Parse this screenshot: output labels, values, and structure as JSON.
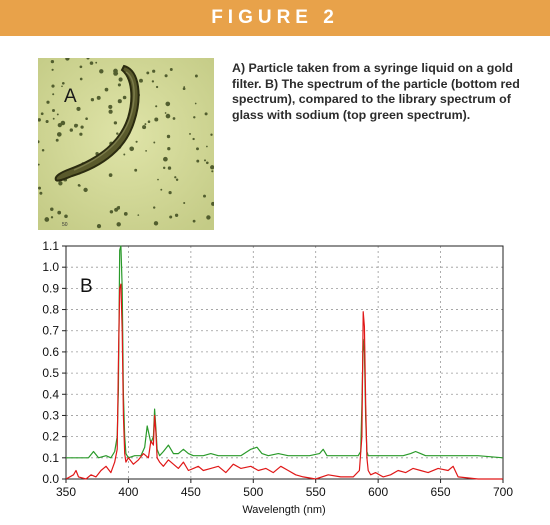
{
  "figure": {
    "title": "FIGURE 2",
    "header_color": "#e8a24a"
  },
  "caption": "A) Particle taken from a syringe liquid on a gold filter. B) The spectrum of the particle (bottom red spectrum), compared to the library spectrum of glass with sodium (top green spectrum).",
  "panel_a": {
    "label": "A",
    "scale_label": "50",
    "background_color": "#d2d99a"
  },
  "chart_data": {
    "type": "line",
    "panel_label": "B",
    "xlabel": "Wavelength (nm)",
    "ylabel": "",
    "xlim": [
      350,
      700
    ],
    "ylim": [
      0,
      1.1
    ],
    "x_ticks": [
      350,
      400,
      450,
      500,
      550,
      600,
      650,
      700
    ],
    "y_ticks": [
      0.0,
      0.1,
      0.2,
      0.3,
      0.4,
      0.5,
      0.6,
      0.7,
      0.8,
      0.9,
      1.0,
      1.1
    ],
    "y_tick_labels": [
      "0.0",
      "0.1",
      "0.2",
      "0.3",
      "0.4",
      "0.5",
      "0.6",
      "0.7",
      "0.8",
      "0.9",
      "1.0",
      "1.1"
    ],
    "grid": true,
    "series": [
      {
        "color": "#2a9a2a",
        "x": [
          350,
          368,
          372,
          376,
          382,
          386,
          389,
          391,
          392,
          393,
          394,
          395,
          396,
          397,
          398,
          400,
          405,
          410,
          413,
          415,
          418,
          420,
          421,
          422,
          423,
          425,
          428,
          432,
          436,
          440,
          444,
          448,
          452,
          456,
          460,
          466,
          472,
          480,
          490,
          498,
          503,
          507,
          512,
          520,
          528,
          535,
          545,
          553,
          556,
          559,
          563,
          570,
          578,
          584,
          586,
          587,
          588,
          589,
          590,
          591,
          592,
          594,
          600,
          610,
          620,
          626,
          630,
          634,
          638,
          645,
          660,
          680,
          700
        ],
        "y": [
          0.1,
          0.1,
          0.13,
          0.1,
          0.11,
          0.1,
          0.13,
          0.2,
          0.42,
          1.08,
          1.1,
          0.9,
          0.4,
          0.2,
          0.12,
          0.1,
          0.11,
          0.11,
          0.15,
          0.25,
          0.17,
          0.2,
          0.33,
          0.24,
          0.14,
          0.11,
          0.13,
          0.16,
          0.12,
          0.12,
          0.14,
          0.12,
          0.11,
          0.11,
          0.11,
          0.12,
          0.11,
          0.11,
          0.11,
          0.14,
          0.15,
          0.12,
          0.11,
          0.12,
          0.11,
          0.11,
          0.11,
          0.12,
          0.14,
          0.11,
          0.11,
          0.11,
          0.11,
          0.11,
          0.13,
          0.35,
          0.66,
          0.6,
          0.28,
          0.13,
          0.11,
          0.11,
          0.11,
          0.11,
          0.11,
          0.12,
          0.13,
          0.12,
          0.11,
          0.11,
          0.11,
          0.11,
          0.1
        ]
      },
      {
        "color": "#e01818",
        "x": [
          350,
          356,
          358,
          360,
          366,
          370,
          374,
          378,
          382,
          386,
          389,
          391,
          392,
          393,
          394,
          395,
          396,
          397,
          398,
          400,
          404,
          408,
          412,
          416,
          418,
          420,
          421,
          422,
          423,
          425,
          428,
          432,
          436,
          440,
          444,
          448,
          452,
          456,
          460,
          466,
          472,
          478,
          484,
          490,
          498,
          504,
          510,
          516,
          522,
          528,
          534,
          540,
          550,
          560,
          570,
          580,
          585,
          587,
          588,
          589,
          590,
          591,
          592,
          594,
          598,
          604,
          610,
          616,
          622,
          628,
          634,
          640,
          648,
          656,
          660,
          664,
          680,
          700
        ],
        "y": [
          0.0,
          0.02,
          0.04,
          0.01,
          0.0,
          0.02,
          0.01,
          0.04,
          0.06,
          0.03,
          0.08,
          0.14,
          0.55,
          0.9,
          0.92,
          0.7,
          0.3,
          0.12,
          0.08,
          0.1,
          0.07,
          0.09,
          0.12,
          0.1,
          0.18,
          0.16,
          0.3,
          0.22,
          0.1,
          0.08,
          0.06,
          0.09,
          0.07,
          0.05,
          0.08,
          0.04,
          0.05,
          0.06,
          0.04,
          0.05,
          0.06,
          0.03,
          0.07,
          0.05,
          0.06,
          0.04,
          0.05,
          0.03,
          0.06,
          0.04,
          0.02,
          0.01,
          0.0,
          0.02,
          0.01,
          0.01,
          0.04,
          0.2,
          0.79,
          0.72,
          0.35,
          0.1,
          0.04,
          0.02,
          0.03,
          0.01,
          0.02,
          0.04,
          0.03,
          0.05,
          0.04,
          0.03,
          0.05,
          0.04,
          0.06,
          0.01,
          0.0,
          0.0
        ]
      }
    ]
  }
}
